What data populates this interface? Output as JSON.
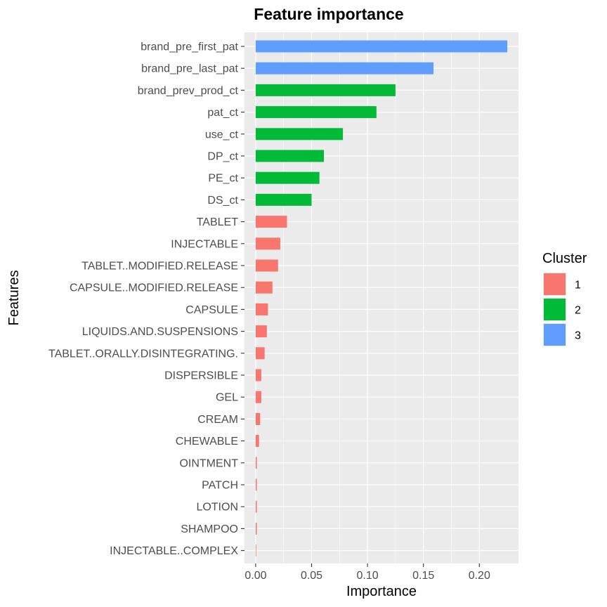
{
  "chart_data": {
    "type": "bar",
    "orientation": "horizontal",
    "title": "Feature importance",
    "xlabel": "Importance",
    "ylabel": "Features",
    "xlim": [
      -0.01,
      0.235
    ],
    "x_ticks": [
      "0.00",
      "0.05",
      "0.10",
      "0.15",
      "0.20"
    ],
    "x_tick_values": [
      0,
      0.05,
      0.1,
      0.15,
      0.2
    ],
    "grid": true,
    "legend": {
      "title": "Cluster",
      "position": "right",
      "entries": [
        {
          "label": "1",
          "color": "#F8766D"
        },
        {
          "label": "2",
          "color": "#00BA38"
        },
        {
          "label": "3",
          "color": "#619CFF"
        }
      ]
    },
    "categories": [
      "brand_pre_first_pat",
      "brand_pre_last_pat",
      "brand_prev_prod_ct",
      "pat_ct",
      "use_ct",
      "DP_ct",
      "PE_ct",
      "DS_ct",
      "TABLET",
      "INJECTABLE",
      "TABLET..MODIFIED.RELEASE",
      "CAPSULE..MODIFIED.RELEASE",
      "CAPSULE",
      "LIQUIDS.AND.SUSPENSIONS",
      "TABLET..ORALLY.DISINTEGRATING.",
      "DISPERSIBLE",
      "GEL",
      "CREAM",
      "CHEWABLE",
      "OINTMENT",
      "PATCH",
      "LOTION",
      "SHAMPOO",
      "INJECTABLE..COMPLEX"
    ],
    "values": [
      0.225,
      0.159,
      0.125,
      0.108,
      0.078,
      0.061,
      0.057,
      0.05,
      0.028,
      0.022,
      0.02,
      0.015,
      0.011,
      0.01,
      0.008,
      0.005,
      0.005,
      0.004,
      0.003,
      0.001,
      0.001,
      0.001,
      0.001,
      0.0005
    ],
    "clusters": [
      "3",
      "3",
      "2",
      "2",
      "2",
      "2",
      "2",
      "2",
      "1",
      "1",
      "1",
      "1",
      "1",
      "1",
      "1",
      "1",
      "1",
      "1",
      "1",
      "1",
      "1",
      "1",
      "1",
      "1"
    ]
  },
  "colors": {
    "panel_background": "#EBEBEB",
    "grid": "#FFFFFF"
  }
}
